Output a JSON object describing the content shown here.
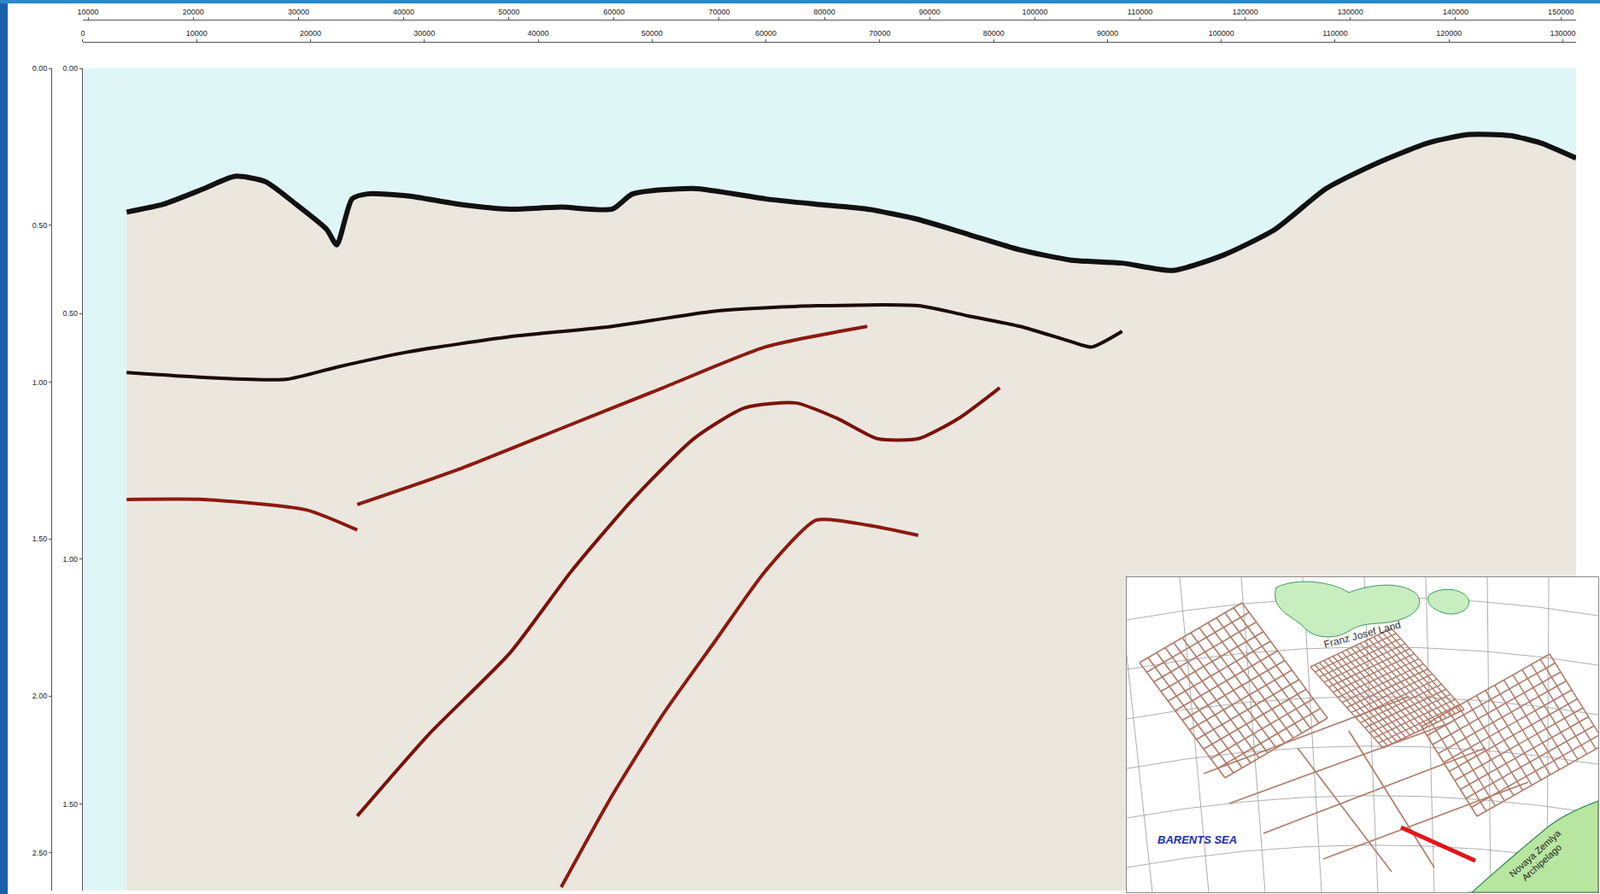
{
  "chart_data": {
    "type": "line",
    "grid": false,
    "xlim": [
      0,
      131160
    ],
    "xticks": [
      0,
      10000,
      20000,
      30000,
      40000,
      50000,
      60000,
      70000,
      80000,
      90000,
      100000,
      110000,
      120000,
      130000
    ],
    "x2lim": [
      9500,
      151450
    ],
    "x2ticks": [
      10000,
      20000,
      30000,
      40000,
      50000,
      60000,
      70000,
      80000,
      90000,
      100000,
      110000,
      120000,
      130000,
      140000,
      150000
    ],
    "ylim": [
      1.676,
      0
    ],
    "yticks": [
      {
        "value": 0,
        "label": "0.00"
      },
      {
        "value": 0.5,
        "label": "0.50"
      },
      {
        "value": 1,
        "label": "1.00"
      },
      {
        "value": 1.5,
        "label": "1.50"
      }
    ],
    "y2lim": [
      2.62,
      0
    ],
    "y2ticks": [
      {
        "value": 0,
        "label": "0.00"
      },
      {
        "value": 0.5,
        "label": "0.50"
      },
      {
        "value": 1,
        "label": "1.00"
      },
      {
        "value": 1.5,
        "label": "1.50"
      },
      {
        "value": 2,
        "label": "2.00"
      },
      {
        "value": 2.5,
        "label": "2.50"
      }
    ],
    "series": [
      {
        "color": "#111111",
        "x": [
          3850,
          7080,
          10660,
          13350,
          16040,
          18720,
          21410,
          22310,
          23650,
          25000,
          28580,
          33060,
          37540,
          42020,
          46500,
          48290,
          53670,
          59940,
          64420,
          68900,
          73380,
          77860,
          82330,
          86810,
          91290,
          95770,
          100250,
          104730,
          109210,
          113690,
          118170,
          121750,
          125340,
          128030,
          131160
        ],
        "values": [
          0.293,
          0.277,
          0.245,
          0.22,
          0.231,
          0.277,
          0.328,
          0.36,
          0.266,
          0.256,
          0.26,
          0.277,
          0.287,
          0.283,
          0.287,
          0.256,
          0.245,
          0.266,
          0.277,
          0.287,
          0.308,
          0.339,
          0.37,
          0.391,
          0.397,
          0.412,
          0.38,
          0.328,
          0.245,
          0.193,
          0.152,
          0.135,
          0.137,
          0.152,
          0.183
        ]
      },
      {
        "color": "#1a0a08",
        "x": [
          3850,
          10660,
          17830,
          22310,
          28580,
          37540,
          46500,
          55460,
          64420,
          73380,
          77860,
          82330,
          86810,
          88600,
          91290
        ],
        "values": [
          0.62,
          0.63,
          0.634,
          0.609,
          0.578,
          0.547,
          0.526,
          0.495,
          0.484,
          0.484,
          0.505,
          0.526,
          0.557,
          0.568,
          0.536
        ]
      },
      {
        "color": "#8b1a10",
        "x": [
          3850,
          10660,
          19620,
          24100
        ],
        "values": [
          0.879,
          0.879,
          0.9,
          0.941
        ]
      },
      {
        "color": "#8b1a10",
        "x": [
          24100,
          33060,
          42020,
          50980,
          59940,
          68900
        ],
        "values": [
          0.889,
          0.817,
          0.734,
          0.651,
          0.568,
          0.526
        ]
      },
      {
        "color": "#7a1208",
        "x": [
          24100,
          30370,
          37540,
          42910,
          48290,
          53660,
          58140,
          62620,
          66210,
          69790,
          73380,
          76960,
          80540
        ],
        "values": [
          1.524,
          1.358,
          1.191,
          1.025,
          0.879,
          0.755,
          0.692,
          0.682,
          0.713,
          0.755,
          0.755,
          0.713,
          0.651
        ]
      },
      {
        "color": "#8b1a10",
        "x": [
          42020,
          46500,
          50980,
          55460,
          59940,
          64420,
          68900,
          73380
        ],
        "values": [
          1.669,
          1.482,
          1.316,
          1.17,
          1.025,
          0.921,
          0.931,
          0.952
        ]
      }
    ]
  },
  "inset_map": {
    "labels": [
      "Franz Josef Land",
      "BARENTS SEA",
      "Novaya Zemlya Archipelago"
    ]
  }
}
